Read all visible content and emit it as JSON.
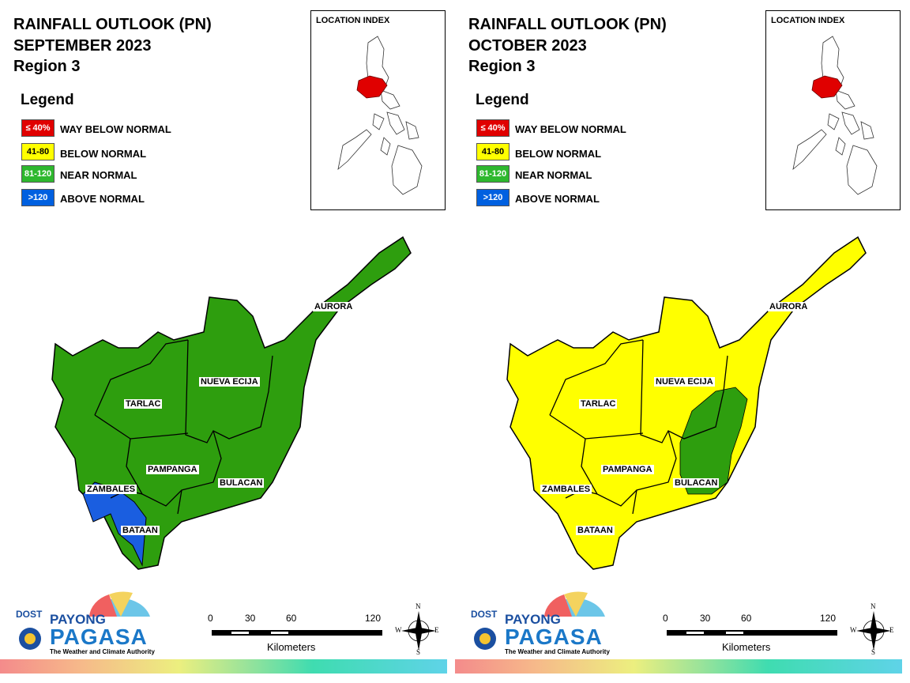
{
  "panels": [
    {
      "title_line1": "RAINFALL OUTLOOK (PN)",
      "title_line2": "SEPTEMBER 2023",
      "title_line3": "Region 3",
      "legend_title": "Legend",
      "legend": [
        {
          "swatch": "≤ 40%",
          "label": "WAY BELOW NORMAL",
          "color": "#e00000",
          "text_color": "#ffffff"
        },
        {
          "swatch": "41-80",
          "label": "BELOW NORMAL",
          "color": "#ffff00",
          "text_color": "#000000"
        },
        {
          "swatch": "81-120",
          "label": "NEAR NORMAL",
          "color": "#2eb82e",
          "text_color": "#ffffff"
        },
        {
          "swatch": ">120",
          "label": "ABOVE NORMAL",
          "color": "#0060e0",
          "text_color": "#ffffff"
        }
      ],
      "inset_title": "LOCATION INDEX",
      "provinces": {
        "aurora": "AURORA",
        "nueva_ecija": "NUEVA ECIJA",
        "tarlac": "TARLAC",
        "pampanga": "PAMPANGA",
        "bulacan": "BULACAN",
        "zambales": "ZAMBALES",
        "bataan": "BATAAN"
      },
      "categories": {
        "default": "NEAR NORMAL",
        "extra": "ABOVE NORMAL"
      },
      "logo": {
        "dost": "DOST",
        "payong": "PAYONG",
        "pagasa": "PAGASA",
        "tagline": "The Weather and Climate Authority"
      },
      "scale": {
        "t0": "0",
        "t1": "30",
        "t2": "60",
        "t3": "120",
        "unit": "Kilometers"
      },
      "compass": {
        "n": "N",
        "s": "S",
        "e": "E",
        "w": "W"
      }
    },
    {
      "title_line1": "RAINFALL OUTLOOK (PN)",
      "title_line2": "OCTOBER 2023",
      "title_line3": "Region 3",
      "legend_title": "Legend",
      "legend": [
        {
          "swatch": "≤ 40%",
          "label": "WAY BELOW NORMAL",
          "color": "#e00000",
          "text_color": "#ffffff"
        },
        {
          "swatch": "41-80",
          "label": "BELOW NORMAL",
          "color": "#ffff00",
          "text_color": "#000000"
        },
        {
          "swatch": "81-120",
          "label": "NEAR NORMAL",
          "color": "#2eb82e",
          "text_color": "#ffffff"
        },
        {
          "swatch": ">120",
          "label": "ABOVE NORMAL",
          "color": "#0060e0",
          "text_color": "#ffffff"
        }
      ],
      "inset_title": "LOCATION INDEX",
      "provinces": {
        "aurora": "AURORA",
        "nueva_ecija": "NUEVA ECIJA",
        "tarlac": "TARLAC",
        "pampanga": "PAMPANGA",
        "bulacan": "BULACAN",
        "zambales": "ZAMBALES",
        "bataan": "BATAAN"
      },
      "categories": {
        "default": "BELOW NORMAL",
        "extra": "NEAR NORMAL"
      },
      "logo": {
        "dost": "DOST",
        "payong": "PAYONG",
        "pagasa": "PAGASA",
        "tagline": "The Weather and Climate Authority"
      },
      "scale": {
        "t0": "0",
        "t1": "30",
        "t2": "60",
        "t3": "120",
        "unit": "Kilometers"
      },
      "compass": {
        "n": "N",
        "s": "S",
        "e": "E",
        "w": "W"
      }
    }
  ],
  "colors": {
    "near_normal": "#2e9e0e",
    "above_normal": "#1a5ee0",
    "below_normal": "#ffff00",
    "highlight": "#e00000"
  }
}
